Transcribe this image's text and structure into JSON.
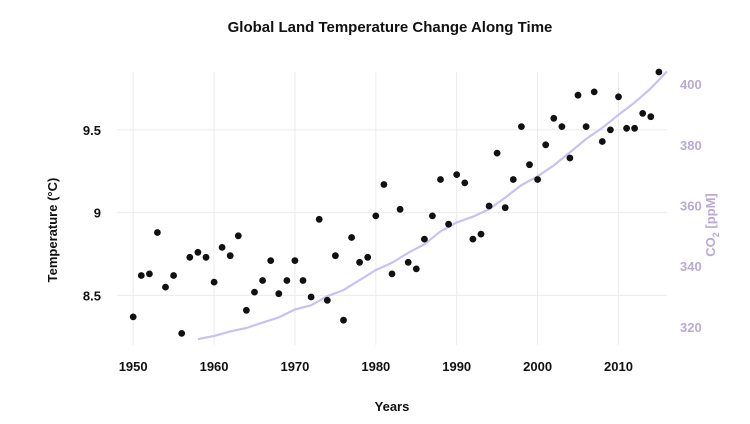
{
  "chart_data": {
    "type": "scatter",
    "title": "Global Land Temperature Change Along Time",
    "xlabel": "Years",
    "ylabel": "Temperature (°C)",
    "y2label_prefix": "CO",
    "y2label_sub": "2",
    "y2label_suffix": " [ppM]",
    "xlim": [
      1948,
      2016
    ],
    "ylim": [
      8.2,
      9.85
    ],
    "y2lim": [
      314,
      404
    ],
    "x_ticks": [
      "1950",
      "1960",
      "1970",
      "1980",
      "1990",
      "2000",
      "2010"
    ],
    "y_ticks": [
      "8.5",
      "9",
      "9.5"
    ],
    "y2_ticks": [
      "320",
      "340",
      "360",
      "380",
      "400"
    ],
    "grid": true,
    "colors": {
      "points": "#111111",
      "co2_line": "#c7c2f3",
      "right_axis": "#b9a9d6"
    },
    "series": [
      {
        "name": "Temperature",
        "kind": "scatter",
        "x": [
          1950,
          1951,
          1952,
          1953,
          1954,
          1955,
          1956,
          1957,
          1958,
          1959,
          1960,
          1961,
          1962,
          1963,
          1964,
          1965,
          1966,
          1967,
          1968,
          1969,
          1970,
          1971,
          1972,
          1973,
          1974,
          1975,
          1976,
          1977,
          1978,
          1979,
          1980,
          1981,
          1982,
          1983,
          1984,
          1985,
          1986,
          1987,
          1988,
          1989,
          1990,
          1991,
          1992,
          1993,
          1994,
          1995,
          1996,
          1997,
          1998,
          1999,
          2000,
          2001,
          2002,
          2003,
          2004,
          2005,
          2006,
          2007,
          2008,
          2009,
          2010,
          2011,
          2012,
          2013,
          2014,
          2015
        ],
        "y": [
          8.37,
          8.62,
          8.63,
          8.88,
          8.55,
          8.62,
          8.27,
          8.73,
          8.76,
          8.73,
          8.58,
          8.79,
          8.74,
          8.86,
          8.41,
          8.52,
          8.59,
          8.71,
          8.51,
          8.59,
          8.71,
          8.59,
          8.49,
          8.96,
          8.47,
          8.74,
          8.35,
          8.85,
          8.7,
          8.73,
          8.98,
          9.17,
          8.63,
          9.02,
          8.7,
          8.66,
          8.84,
          8.98,
          9.2,
          8.93,
          9.23,
          9.18,
          8.84,
          8.87,
          9.04,
          9.36,
          9.03,
          9.2,
          9.52,
          9.29,
          9.2,
          9.41,
          9.57,
          9.52,
          9.33,
          9.71,
          9.52,
          9.73,
          9.43,
          9.5,
          9.7,
          9.51,
          9.51,
          9.6,
          9.58,
          9.85
        ]
      },
      {
        "name": "CO2",
        "kind": "line",
        "axis": "right",
        "x": [
          1958,
          1960,
          1962,
          1964,
          1966,
          1968,
          1970,
          1972,
          1974,
          1976,
          1978,
          1980,
          1982,
          1984,
          1986,
          1988,
          1990,
          1992,
          1994,
          1996,
          1998,
          2000,
          2002,
          2004,
          2006,
          2008,
          2010,
          2012,
          2014,
          2016
        ],
        "y": [
          315.9,
          317.0,
          318.5,
          319.6,
          321.4,
          323.1,
          325.7,
          327.1,
          330.1,
          332.1,
          335.4,
          338.7,
          341.1,
          344.4,
          347.2,
          351.5,
          354.4,
          356.3,
          358.8,
          362.6,
          366.7,
          369.6,
          373.2,
          377.5,
          381.9,
          385.6,
          389.9,
          393.9,
          398.6,
          404.2
        ]
      }
    ]
  }
}
